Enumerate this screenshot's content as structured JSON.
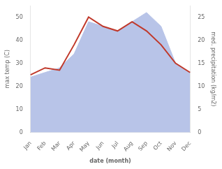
{
  "chart_data": {
    "type": "line",
    "categories": [
      "Jan",
      "Feb",
      "Mar",
      "Apr",
      "May",
      "Jun",
      "Jul",
      "Aug",
      "Sep",
      "Oct",
      "Nov",
      "Dec"
    ],
    "series": [
      {
        "type": "area",
        "color": "#b8c4e8",
        "axis": "y2",
        "values": [
          12,
          13,
          14,
          17,
          24,
          23,
          22,
          24,
          26,
          23,
          15,
          13
        ]
      },
      {
        "type": "line",
        "color": "#c0392b",
        "values": [
          25,
          28,
          27,
          38,
          50,
          46,
          44,
          48,
          44,
          38,
          30,
          26
        ]
      }
    ],
    "xlabel": "date (month)",
    "ylabel": "max temp (C)",
    "y2label": "med. precipitation (kg/m2)",
    "ylim": [
      0,
      55
    ],
    "yticks": [
      0,
      10,
      20,
      30,
      40,
      50
    ],
    "y2lim": [
      0,
      27.5
    ],
    "y2ticks": [
      0,
      5,
      10,
      15,
      20,
      25
    ],
    "grid": false
  }
}
